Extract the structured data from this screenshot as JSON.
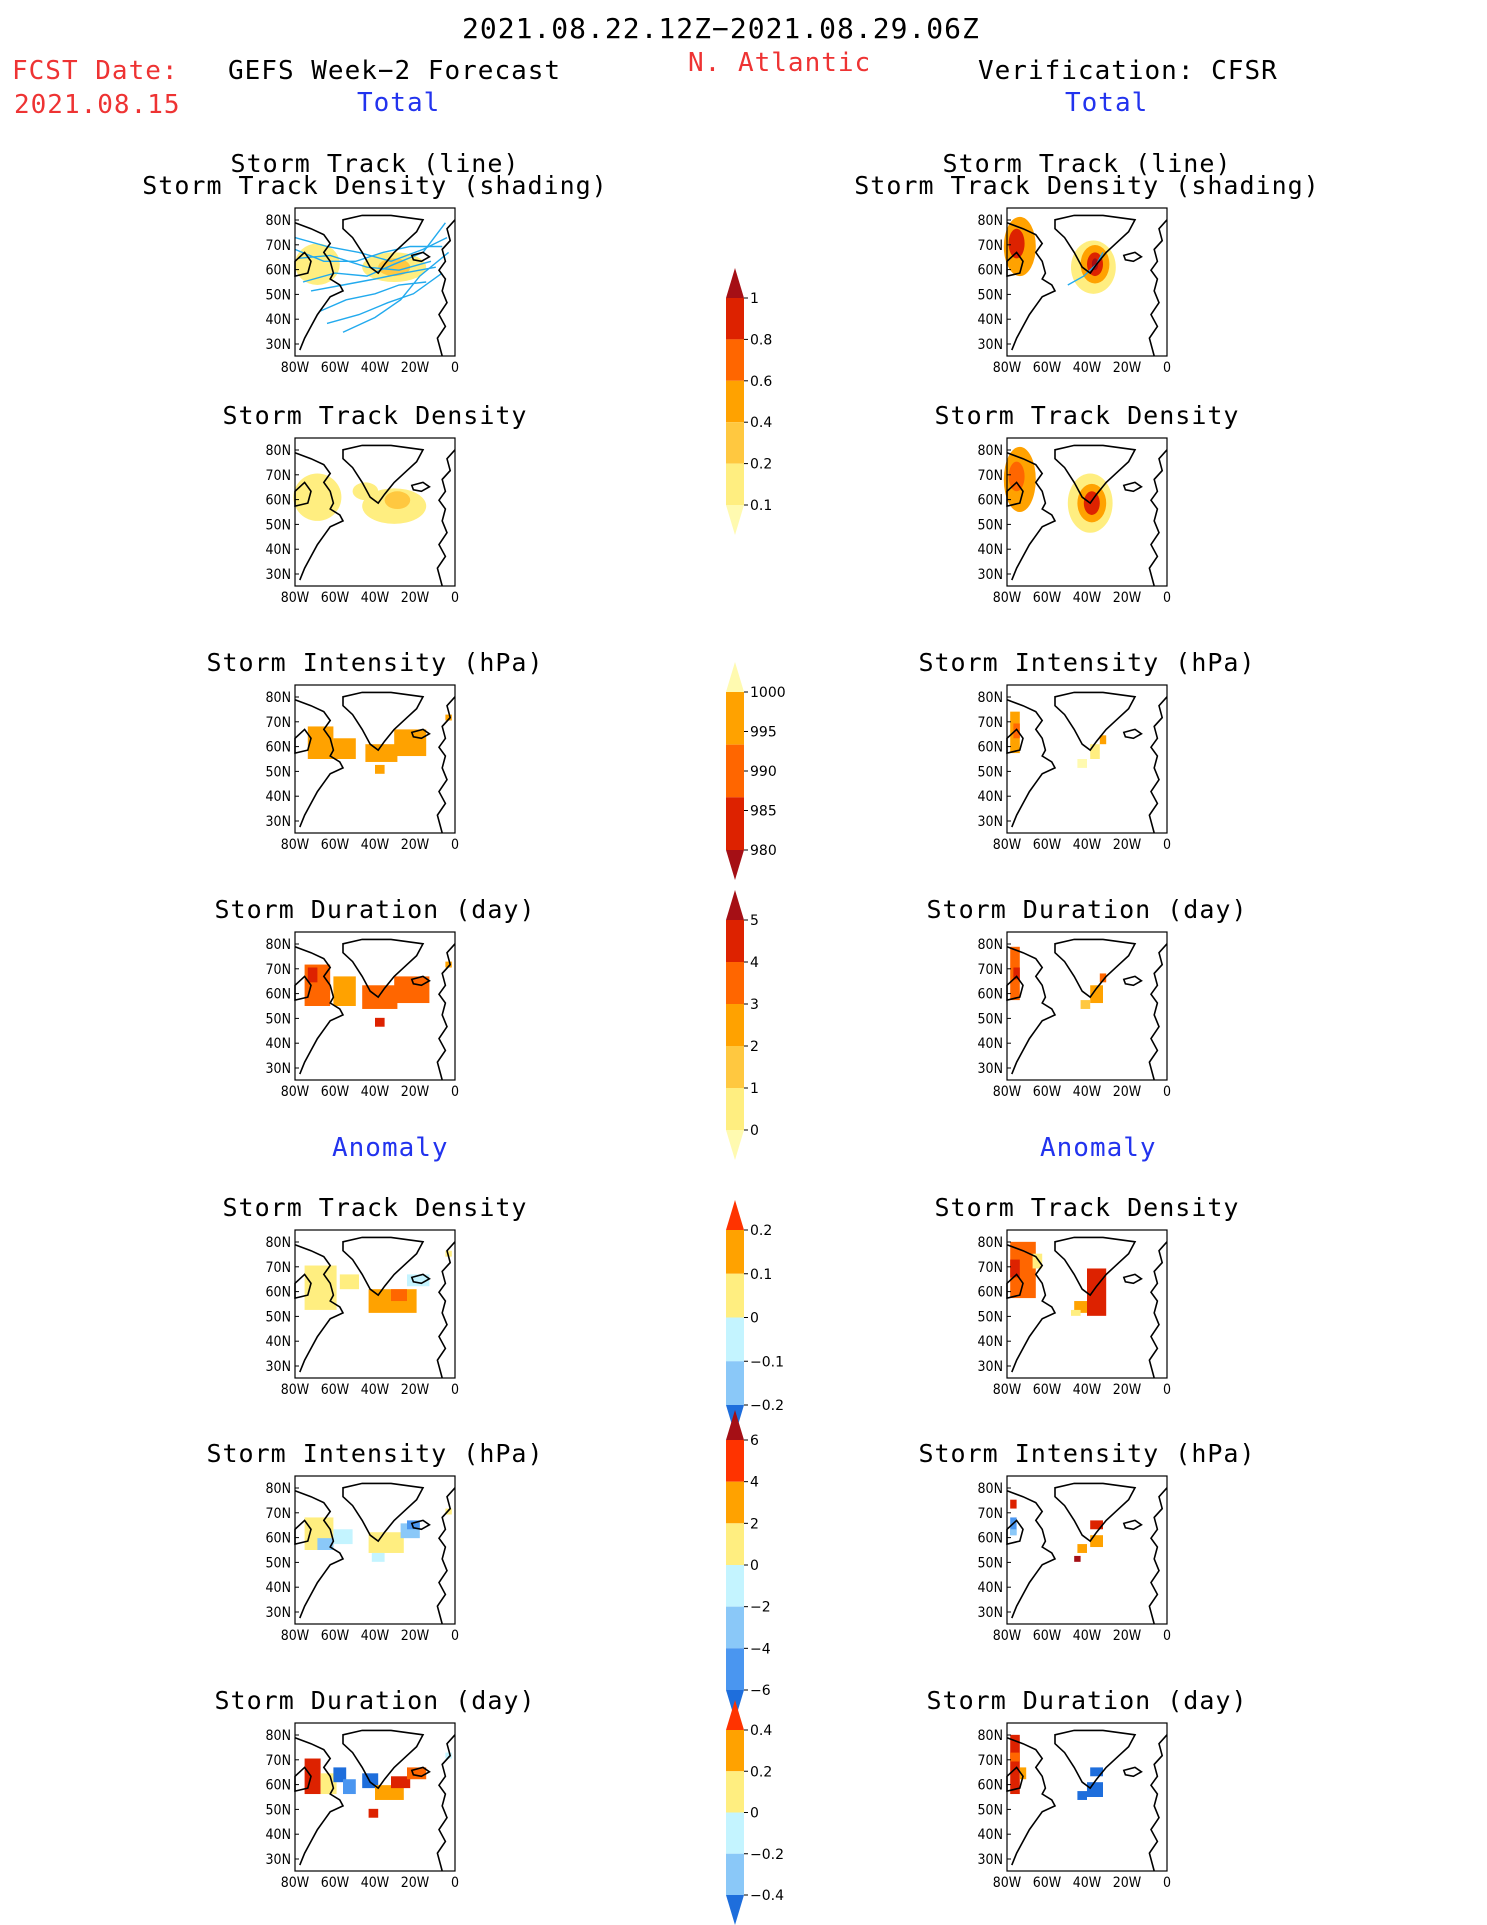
{
  "header": {
    "date_range": "2021.08.22.12Z−2021.08.29.06Z",
    "fcst_label": "FCST Date:",
    "fcst_date": "2021.08.15",
    "forecast_title": "GEFS Week−2 Forecast",
    "region": "N. Atlantic",
    "verification_title": "Verification: CFSR",
    "section_total": "Total",
    "section_anomaly": "Anomaly"
  },
  "axes": {
    "lat_ticks": [
      "80N",
      "70N",
      "60N",
      "50N",
      "40N",
      "30N"
    ],
    "lon_ticks": [
      "80W",
      "60W",
      "40W",
      "20W",
      "0"
    ]
  },
  "panel_titles": {
    "track_line": "Storm Track (line)",
    "track_shading": "Storm Track Density (shading)",
    "density": "Storm Track Density",
    "intensity": "Storm Intensity (hPa)",
    "duration": "Storm Duration (day)"
  },
  "colorbars": [
    {
      "ticks": [
        "1",
        "0.8",
        "0.6",
        "0.4",
        "0.2",
        "0.1"
      ],
      "colors": [
        "#a50f15",
        "#dd2200",
        "#ff6600",
        "#ffa200",
        "#ffc840",
        "#ffee80",
        "#fffab0"
      ]
    },
    {
      "ticks": [
        "1000",
        "995",
        "990",
        "985",
        "980"
      ],
      "colors": [
        "#fffab0",
        "#ffa200",
        "#ff6600",
        "#dd2200",
        "#a50f15"
      ]
    },
    {
      "ticks": [
        "5",
        "4",
        "3",
        "2",
        "1",
        "0"
      ],
      "colors": [
        "#a50f15",
        "#dd2200",
        "#ff6600",
        "#ffa200",
        "#ffc840",
        "#ffee80",
        "#fffab0"
      ]
    },
    {
      "ticks": [
        "0.2",
        "0.1",
        "0",
        "−0.1",
        "−0.2"
      ],
      "colors": [
        "#ff3300",
        "#ffa200",
        "#ffee80",
        "#c4f4ff",
        "#8ac8f8",
        "#1e6edc"
      ]
    },
    {
      "ticks": [
        "6",
        "4",
        "2",
        "0",
        "−2",
        "−4",
        "−6"
      ],
      "colors": [
        "#a50f15",
        "#ff3300",
        "#ffa200",
        "#ffee80",
        "#c4f4ff",
        "#8ac8f8",
        "#4a96f0",
        "#1e6edc"
      ]
    },
    {
      "ticks": [
        "0.4",
        "0.2",
        "0",
        "−0.2",
        "−0.4"
      ],
      "colors": [
        "#ff3300",
        "#ffa200",
        "#ffee80",
        "#c4f4ff",
        "#8ac8f8",
        "#1e6edc"
      ]
    }
  ],
  "colors": {
    "title_red": "#ee3333",
    "title_blue": "#2233ee",
    "track_line": "#22aaee",
    "coast": "#000000"
  }
}
